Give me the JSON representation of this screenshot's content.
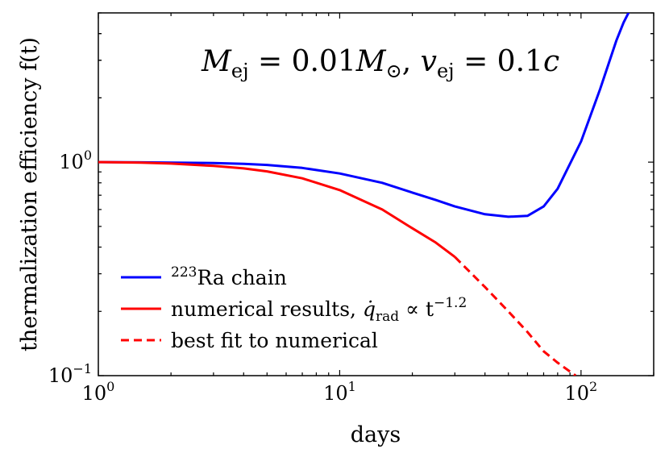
{
  "chart_data": {
    "type": "line",
    "xscale": "log",
    "yscale": "log",
    "xlim": [
      1,
      200
    ],
    "ylim": [
      0.1,
      5
    ],
    "xlabel": "days",
    "ylabel": "thermalization efficiency f(t)",
    "annotation": "M_ej = 0.01M_⊙, v_ej = 0.1c",
    "xticks": [
      {
        "value": 1,
        "base": "10",
        "exp": "0"
      },
      {
        "value": 10,
        "base": "10",
        "exp": "1"
      },
      {
        "value": 100,
        "base": "10",
        "exp": "2"
      }
    ],
    "yticks": [
      {
        "value": 0.1,
        "base": "10",
        "exp": "−1"
      },
      {
        "value": 1,
        "base": "10",
        "exp": "0"
      }
    ],
    "legend_position": "lower-left",
    "series": [
      {
        "name": "223Ra chain",
        "label_sup": "223",
        "label_main": "Ra chain",
        "color": "#0000ff",
        "style": "solid",
        "x": [
          1,
          1.5,
          2,
          3,
          4,
          5,
          7,
          10,
          15,
          20,
          25,
          30,
          40,
          50,
          60,
          70,
          80,
          100,
          120,
          140,
          150,
          160
        ],
        "y": [
          1.0,
          0.998,
          0.995,
          0.99,
          0.982,
          0.97,
          0.94,
          0.885,
          0.8,
          0.72,
          0.665,
          0.62,
          0.57,
          0.555,
          0.56,
          0.62,
          0.75,
          1.25,
          2.2,
          3.7,
          4.5,
          5.2
        ]
      },
      {
        "name": "numerical results, q̇_rad ∝ t^−1.2",
        "label_main": "numerical results, ",
        "label_q": "q̇",
        "label_rad": "rad",
        "label_prop": " ∝ t",
        "label_exp": "−1.2",
        "color": "#ff0000",
        "style": "solid",
        "x": [
          1,
          1.5,
          2,
          3,
          4,
          5,
          7,
          10,
          15,
          20,
          25,
          30
        ],
        "y": [
          1.0,
          0.995,
          0.985,
          0.96,
          0.935,
          0.905,
          0.84,
          0.74,
          0.6,
          0.49,
          0.42,
          0.36
        ]
      },
      {
        "name": "best fit to numerical",
        "label_main": "best fit to numerical",
        "color": "#ff0000",
        "style": "dashed",
        "x": [
          30,
          40,
          50,
          60,
          70,
          80,
          95
        ],
        "y": [
          0.36,
          0.26,
          0.2,
          0.16,
          0.13,
          0.115,
          0.1
        ]
      }
    ]
  }
}
